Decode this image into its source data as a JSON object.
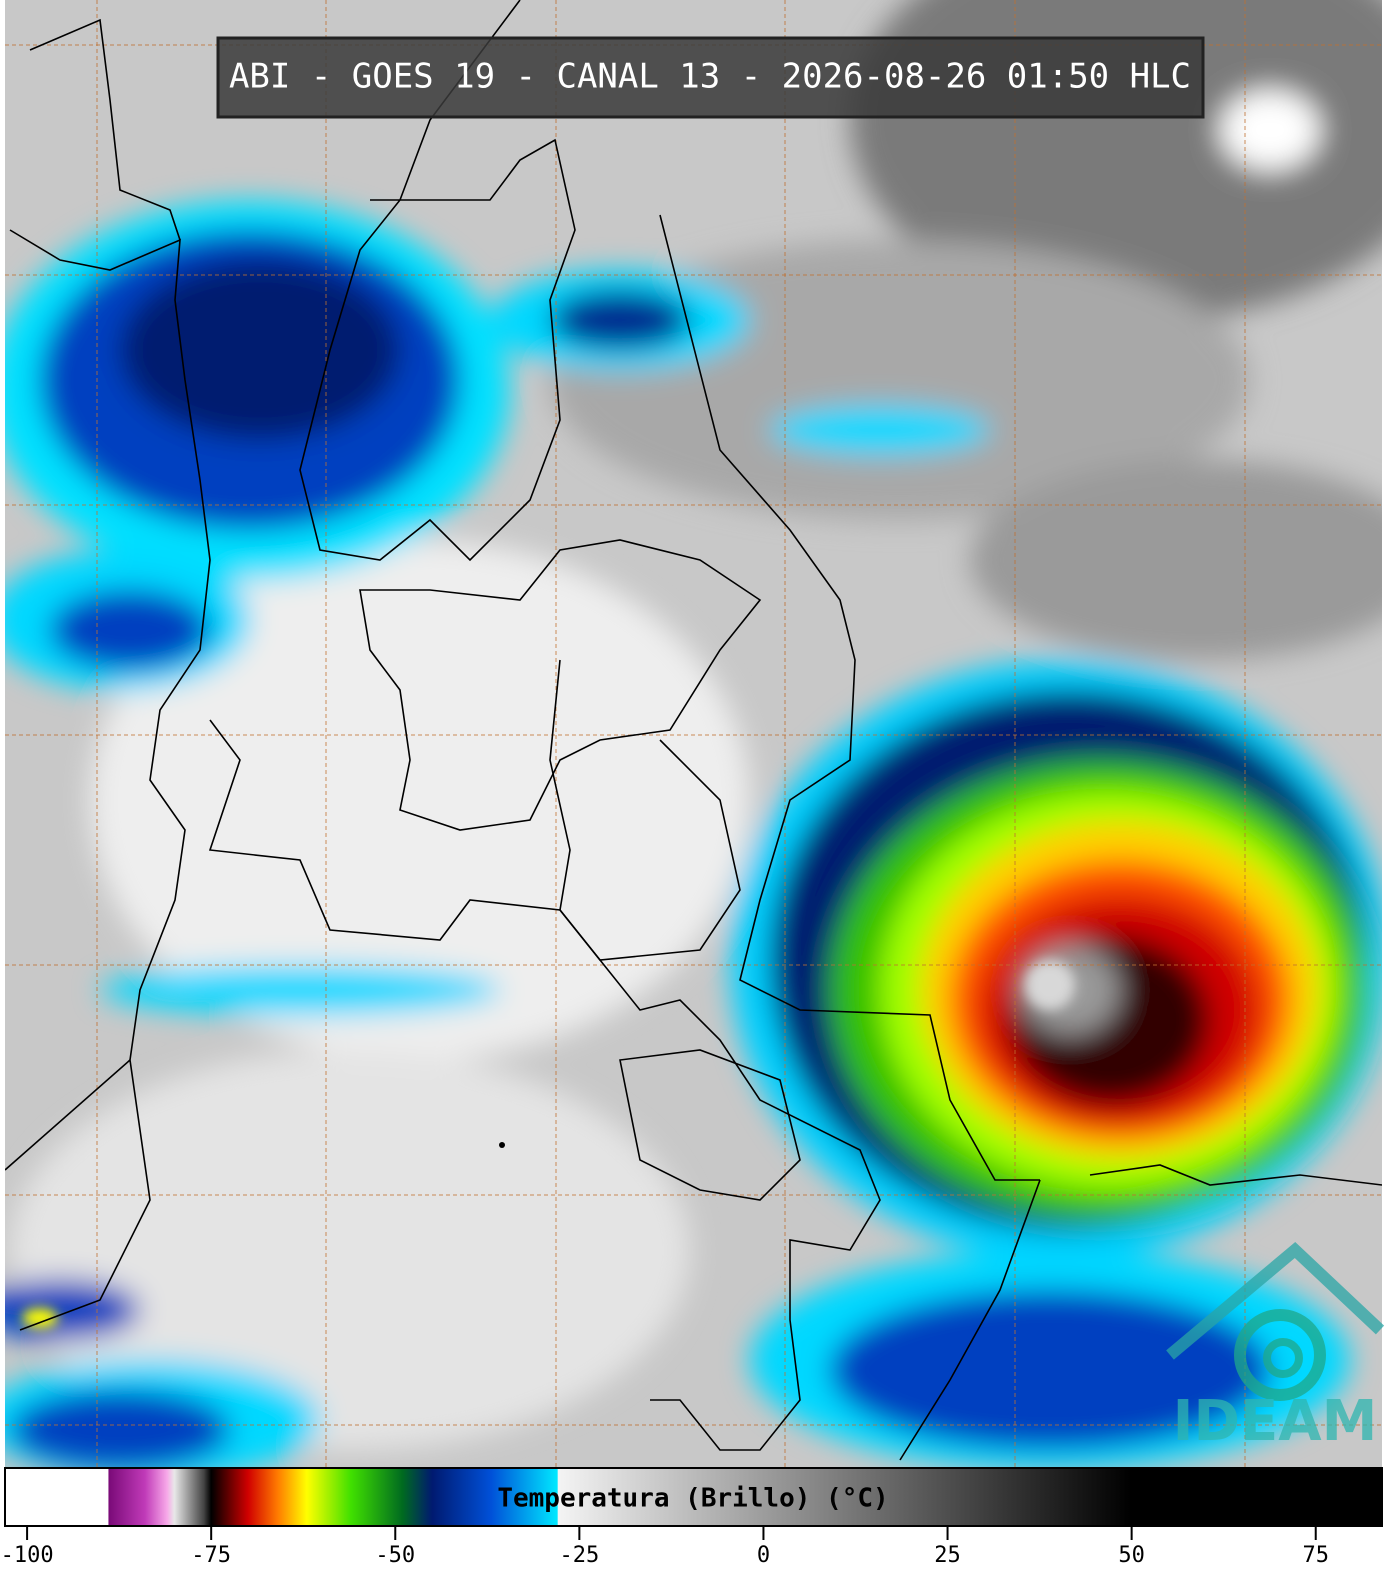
{
  "title": "ABI - GOES 19 - CANAL 13 - 2026-08-26 01:50 HLC",
  "logo": "IDEAM",
  "colorbar": {
    "label": "Temperatura (Brillo) (°C)",
    "xlim": [
      -103,
      84
    ],
    "xticks": [
      -100,
      -75,
      -50,
      -25,
      0,
      25,
      50,
      75
    ],
    "stops": [
      {
        "value": -103,
        "color": "#ffffff"
      },
      {
        "value": -89,
        "color": "#ffffff"
      },
      {
        "value": -88.9,
        "color": "#7a0a78"
      },
      {
        "value": -84,
        "color": "#c03ab8"
      },
      {
        "value": -81,
        "color": "#f7a8e8"
      },
      {
        "value": -80,
        "color": "#e8e8e8"
      },
      {
        "value": -76,
        "color": "#444444"
      },
      {
        "value": -75,
        "color": "#000000"
      },
      {
        "value": -70,
        "color": "#d00000"
      },
      {
        "value": -66,
        "color": "#ff7a00"
      },
      {
        "value": -62,
        "color": "#ffff00"
      },
      {
        "value": -56,
        "color": "#40e000"
      },
      {
        "value": -49,
        "color": "#006a20"
      },
      {
        "value": -45,
        "color": "#001a70"
      },
      {
        "value": -37,
        "color": "#0050d8"
      },
      {
        "value": -28,
        "color": "#00e8ff"
      },
      {
        "value": -27.9,
        "color": "#f4f4f4"
      },
      {
        "value": 50,
        "color": "#000000"
      },
      {
        "value": 84,
        "color": "#000000"
      }
    ]
  }
}
